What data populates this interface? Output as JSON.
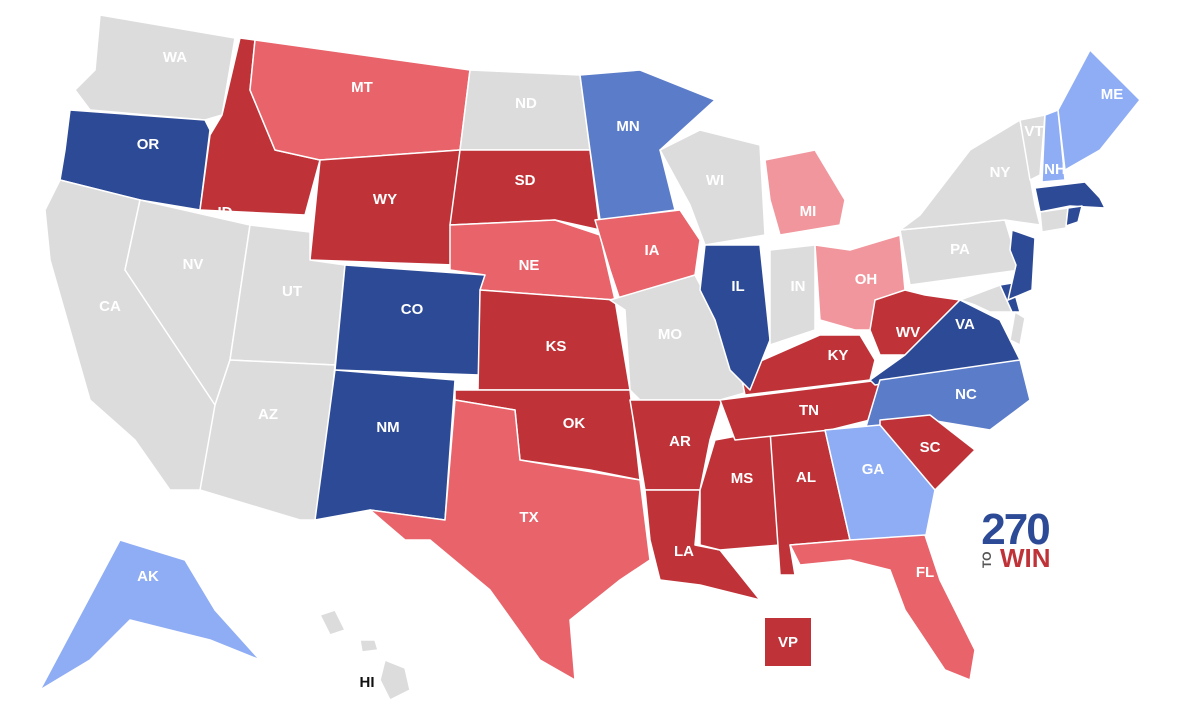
{
  "map": {
    "states": [
      {
        "label": "WA",
        "color": "#dcdcdc"
      },
      {
        "label": "OR",
        "color": "#2c4a96"
      },
      {
        "label": "CA",
        "color": "#dcdcdc"
      },
      {
        "label": "NV",
        "color": "#dcdcdc"
      },
      {
        "label": "ID",
        "color": "#bf3338"
      },
      {
        "label": "MT",
        "color": "#e8636a"
      },
      {
        "label": "WY",
        "color": "#bf3338"
      },
      {
        "label": "UT",
        "color": "#dcdcdc"
      },
      {
        "label": "AZ",
        "color": "#dcdcdc"
      },
      {
        "label": "CO",
        "color": "#2c4a96"
      },
      {
        "label": "NM",
        "color": "#2c4a96"
      },
      {
        "label": "ND",
        "color": "#dcdcdc"
      },
      {
        "label": "SD",
        "color": "#bf3338"
      },
      {
        "label": "NE",
        "color": "#e8636a"
      },
      {
        "label": "KS",
        "color": "#bf3338"
      },
      {
        "label": "OK",
        "color": "#bf3338"
      },
      {
        "label": "TX",
        "color": "#e8636a"
      },
      {
        "label": "MN",
        "color": "#5b7cc9"
      },
      {
        "label": "IA",
        "color": "#e8636a"
      },
      {
        "label": "MO",
        "color": "#dcdcdc"
      },
      {
        "label": "AR",
        "color": "#bf3338"
      },
      {
        "label": "LA",
        "color": "#bf3338"
      },
      {
        "label": "MS",
        "color": "#bf3338"
      },
      {
        "label": "AL",
        "color": "#bf3338"
      },
      {
        "label": "TN",
        "color": "#bf3338"
      },
      {
        "label": "KY",
        "color": "#bf3338"
      },
      {
        "label": "IL",
        "color": "#2c4a96"
      },
      {
        "label": "WI",
        "color": "#dcdcdc"
      },
      {
        "label": "MI",
        "color": "#f0969c"
      },
      {
        "label": "IN",
        "color": "#dcdcdc"
      },
      {
        "label": "OH",
        "color": "#f0969c"
      },
      {
        "label": "WV",
        "color": "#bf3338"
      },
      {
        "label": "VA",
        "color": "#2c4a96"
      },
      {
        "label": "NC",
        "color": "#5b7cc9"
      },
      {
        "label": "SC",
        "color": "#bf3338"
      },
      {
        "label": "GA",
        "color": "#8fadf4"
      },
      {
        "label": "FL",
        "color": "#e8636a"
      },
      {
        "label": "PA",
        "color": "#dcdcdc"
      },
      {
        "label": "NY",
        "color": "#dcdcdc"
      },
      {
        "label": "VT",
        "color": "#dcdcdc"
      },
      {
        "label": "NH",
        "color": "#8fadf4"
      },
      {
        "label": "ME",
        "color": "#8fadf4"
      },
      {
        "label": "AK",
        "color": "#8fadf4"
      },
      {
        "label": "HI",
        "color": "#dcdcdc"
      }
    ],
    "vp_label": "VP",
    "logo": {
      "number": "270",
      "to": "TO",
      "win": "WIN"
    }
  }
}
